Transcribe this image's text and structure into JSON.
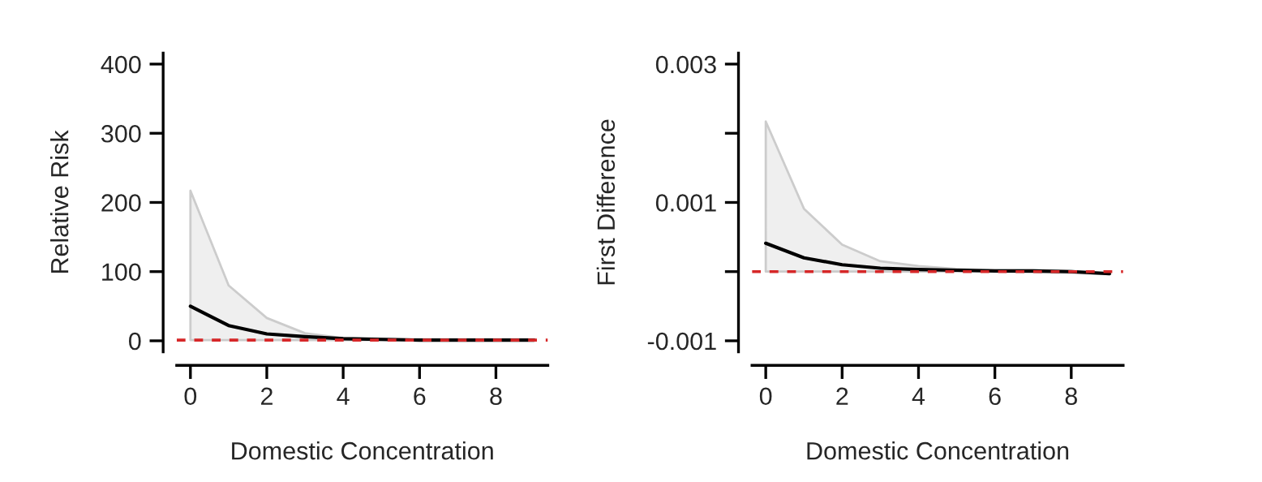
{
  "chart_data": [
    {
      "type": "line",
      "xlabel": "Domestic Concentration",
      "ylabel": "Relative Risk",
      "x": [
        0,
        1,
        2,
        3,
        4,
        5,
        6,
        7,
        8,
        9
      ],
      "series": [
        {
          "color": "#000000",
          "values": [
            50,
            22,
            10,
            6,
            3,
            2,
            1,
            1,
            1,
            1
          ],
          "lower": [
            1,
            1,
            1,
            1,
            1,
            1,
            1,
            1,
            1,
            1
          ],
          "upper": [
            217,
            80,
            33,
            11,
            4,
            3,
            2,
            1,
            1,
            1
          ]
        }
      ],
      "xlim": [
        -0.36,
        9.36
      ],
      "xticks": [
        0,
        2,
        4,
        6,
        8
      ],
      "ylim": [
        -16,
        416
      ],
      "yticks": [
        0,
        100,
        200,
        300,
        400
      ],
      "ref_lines": [
        {
          "axis": "y",
          "value": 1,
          "color": "#d62728",
          "line_style": "dashed"
        }
      ],
      "grid": false,
      "legend": false
    },
    {
      "type": "line",
      "xlabel": "Domestic Concentration",
      "ylabel": "First Difference",
      "x": [
        0,
        1,
        2,
        3,
        4,
        5,
        6,
        7,
        8,
        9
      ],
      "series": [
        {
          "color": "#000000",
          "values": [
            0.00041,
            0.0002,
            0.0001,
            5e-05,
            3e-05,
            2e-05,
            1e-05,
            1e-05,
            0.0,
            -3e-05
          ],
          "lower": [
            0.0,
            0.0,
            0.0,
            0.0,
            0.0,
            0.0,
            0.0,
            -1e-05,
            -2e-05,
            -4e-05
          ],
          "upper": [
            0.00217,
            0.00091,
            0.00039,
            0.00015,
            8e-05,
            4e-05,
            2e-05,
            2e-05,
            1e-05,
            -2e-05
          ]
        }
      ],
      "xlim": [
        -0.36,
        9.36
      ],
      "xticks": [
        0,
        2,
        4,
        6,
        8
      ],
      "ylim": [
        -0.00116,
        0.00316
      ],
      "yticks": [
        -0.001,
        {
          "value": 0,
          "label": null
        },
        0.001,
        {
          "value": 0.002,
          "label": null
        },
        0.003
      ],
      "ref_lines": [
        {
          "axis": "y",
          "value": 0,
          "color": "#d62728",
          "line_style": "dashed"
        }
      ],
      "grid": false,
      "legend": false
    }
  ]
}
